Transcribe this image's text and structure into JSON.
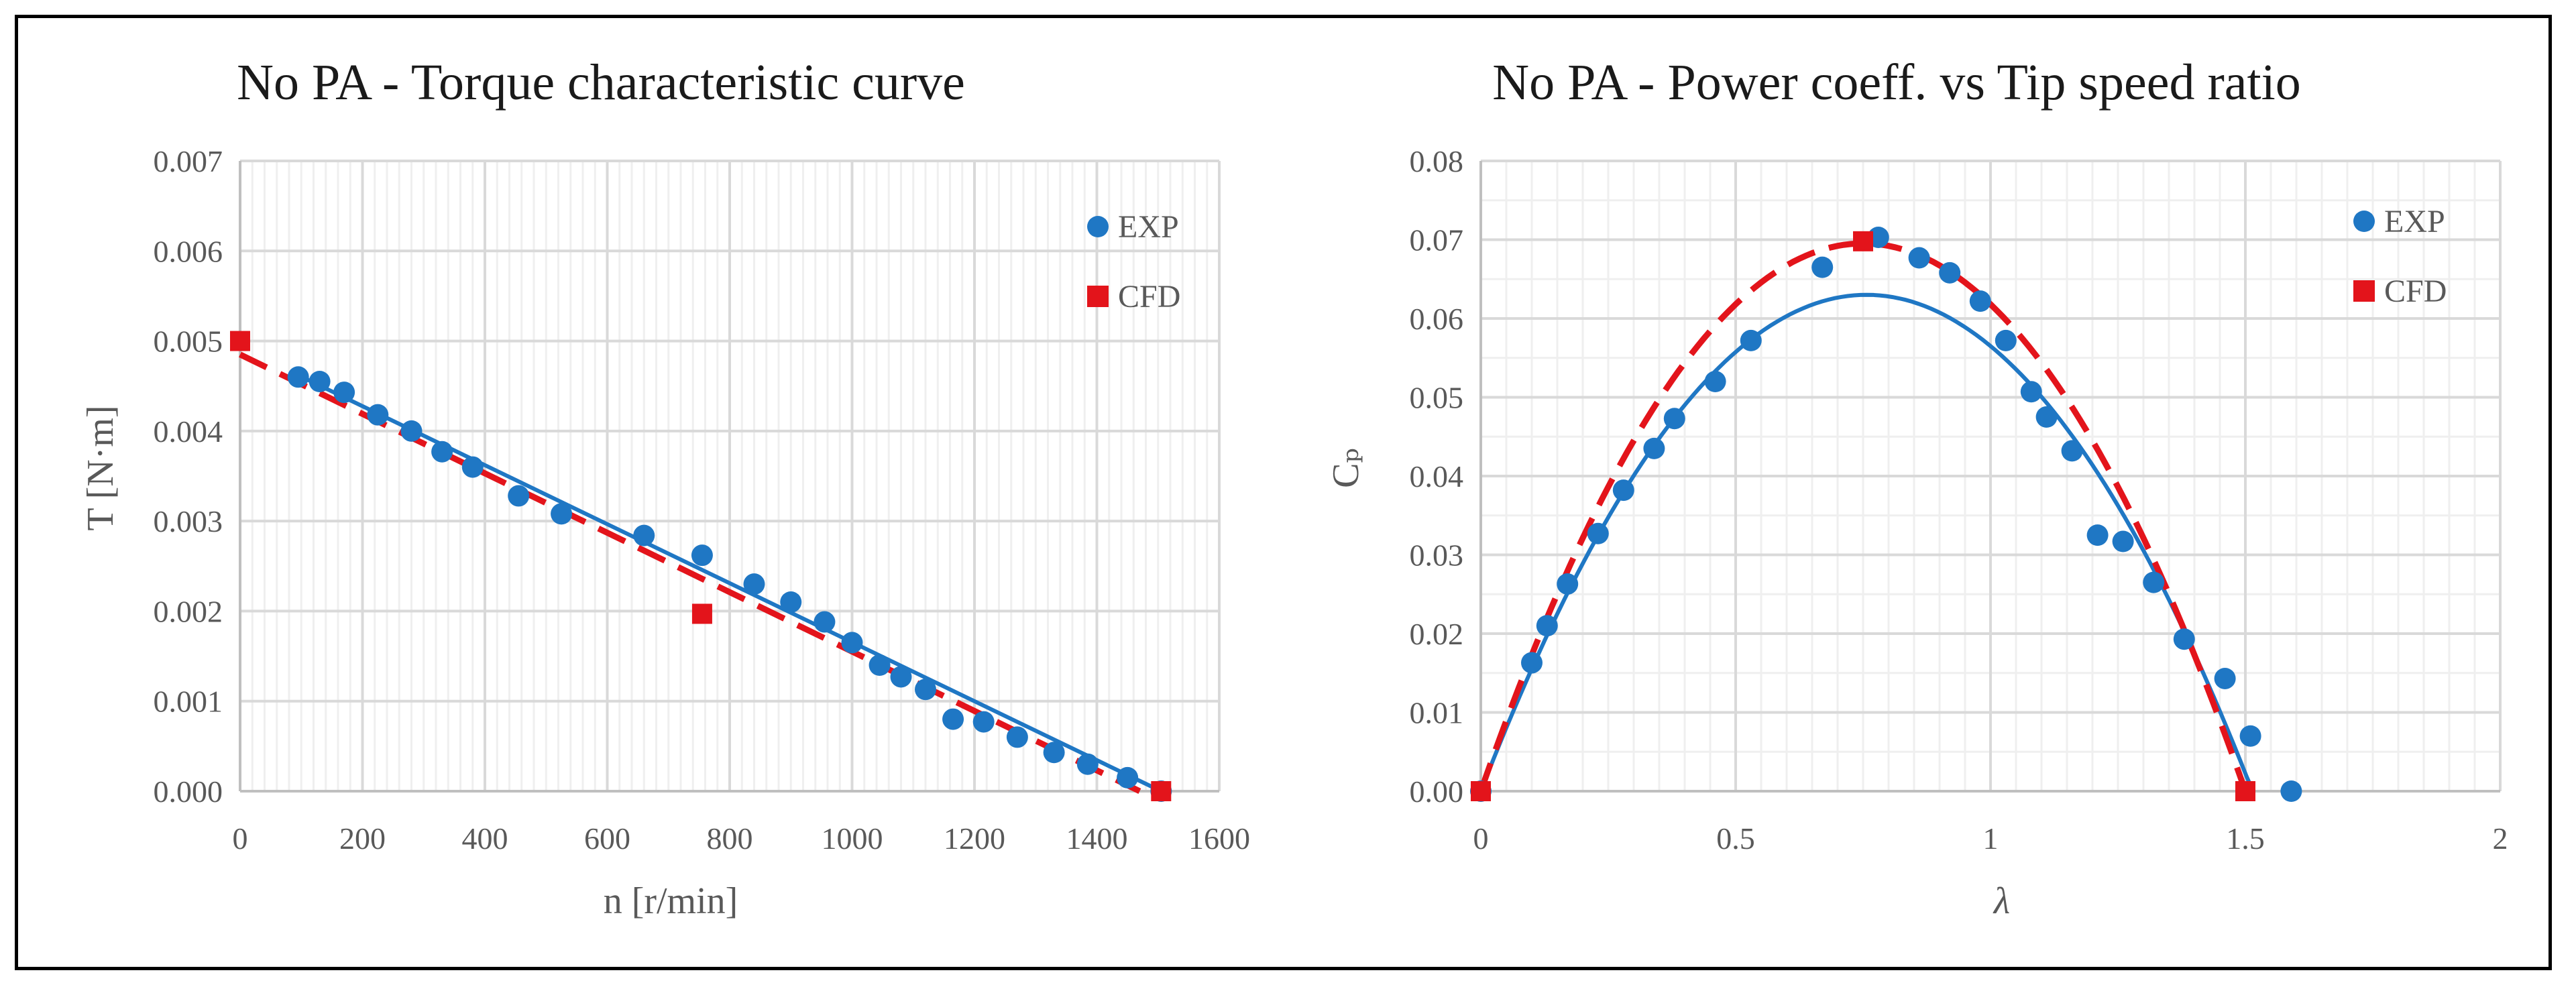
{
  "colors": {
    "exp": "#1f77c4",
    "cfd": "#e3141b",
    "grid_major": "#d9d9d9",
    "grid_minor": "#efefef",
    "axis": "#bfbfbf"
  },
  "chart_data": [
    {
      "type": "scatter",
      "title": "No PA - Torque characteristic curve",
      "xlabel": "n [r/min]",
      "ylabel": "T [N·m]",
      "xlim": [
        0,
        1600
      ],
      "ylim": [
        0,
        0.007
      ],
      "xticks": [
        "0",
        "200",
        "400",
        "600",
        "800",
        "1000",
        "1200",
        "1400",
        "1600"
      ],
      "yticks": [
        "0.000",
        "0.001",
        "0.002",
        "0.003",
        "0.004",
        "0.005",
        "0.006",
        "0.007"
      ],
      "legend": [
        "EXP",
        "CFD"
      ],
      "series": [
        {
          "name": "EXP",
          "kind": "points",
          "x": [
            95,
            130,
            170,
            225,
            280,
            330,
            380,
            455,
            525,
            660,
            755,
            840,
            900,
            955,
            1000,
            1045,
            1080,
            1120,
            1165,
            1215,
            1270,
            1330,
            1385,
            1450,
            1505
          ],
          "y": [
            0.0046,
            0.00455,
            0.00443,
            0.00418,
            0.004,
            0.00377,
            0.0036,
            0.00328,
            0.00308,
            0.00284,
            0.00262,
            0.0023,
            0.0021,
            0.00188,
            0.00165,
            0.0014,
            0.00127,
            0.00113,
            0.0008,
            0.00077,
            0.0006,
            0.00043,
            0.0003,
            0.00015,
            0.0
          ]
        },
        {
          "name": "EXP trend",
          "kind": "line",
          "x": [
            95,
            1505
          ],
          "y": [
            0.00462,
            0.0
          ]
        },
        {
          "name": "CFD",
          "kind": "points",
          "x": [
            0,
            755,
            1505
          ],
          "y": [
            0.005,
            0.00197,
            0.0
          ]
        },
        {
          "name": "CFD trend",
          "kind": "dashed",
          "x": [
            0,
            1470
          ],
          "y": [
            0.00485,
            0.0
          ]
        }
      ]
    },
    {
      "type": "scatter",
      "title": "No PA - Power coeff. vs Tip speed ratio",
      "xlabel": "λ",
      "ylabel": "Cₚ",
      "xlim": [
        0,
        2
      ],
      "ylim": [
        0,
        0.08
      ],
      "xticks": [
        "0",
        "0.5",
        "1",
        "1.5",
        "2"
      ],
      "yticks": [
        "0.00",
        "0.01",
        "0.02",
        "0.03",
        "0.04",
        "0.05",
        "0.06",
        "0.07",
        "0.08"
      ],
      "legend": [
        "EXP",
        "CFD"
      ],
      "series": [
        {
          "name": "EXP",
          "kind": "points",
          "x": [
            0.0,
            0.1,
            0.13,
            0.17,
            0.23,
            0.28,
            0.34,
            0.38,
            0.46,
            0.53,
            0.67,
            0.78,
            0.86,
            0.92,
            0.98,
            1.03,
            1.08,
            1.11,
            1.16,
            1.21,
            1.26,
            1.32,
            1.38,
            1.46,
            1.51,
            1.59
          ],
          "y": [
            0.0,
            0.0163,
            0.021,
            0.0263,
            0.0327,
            0.0382,
            0.0435,
            0.0473,
            0.052,
            0.0572,
            0.0665,
            0.0703,
            0.0677,
            0.0658,
            0.0622,
            0.0572,
            0.0507,
            0.0475,
            0.0432,
            0.0325,
            0.0317,
            0.0265,
            0.0193,
            0.0143,
            0.007,
            0.0
          ]
        },
        {
          "name": "EXP trend",
          "kind": "line",
          "poly": [
            0.1665,
            -0.11,
            0.0
          ],
          "range": [
            0,
            1.515
          ]
        },
        {
          "name": "CFD",
          "kind": "points",
          "x": [
            0.0,
            0.75,
            1.5
          ],
          "y": [
            0.0,
            0.0698,
            0.0
          ]
        },
        {
          "name": "CFD trend",
          "kind": "dashed",
          "poly": [
            0.1854,
            -0.1236,
            0.0
          ],
          "range": [
            0,
            1.5
          ]
        }
      ]
    }
  ]
}
